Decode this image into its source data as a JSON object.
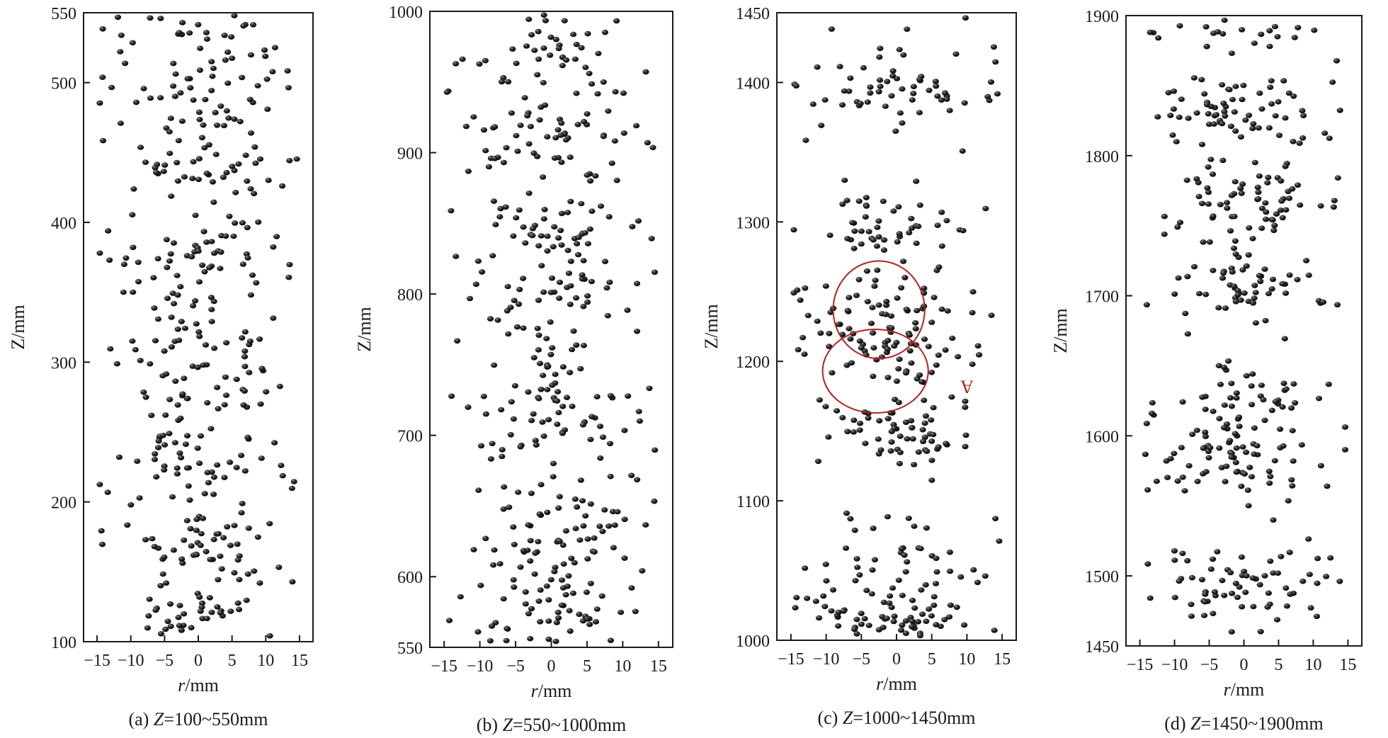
{
  "chart_data": [
    {
      "type": "scatter",
      "caption": "(a) Z=100~550mm",
      "caption_prefix": "(a) ",
      "caption_var": "Z",
      "caption_range": "=100~550mm",
      "xlabel_var": "r",
      "xlabel_unit": "/mm",
      "ylabel": "Z/mm",
      "xlim": [
        -17,
        17
      ],
      "ylim": [
        100,
        550
      ],
      "xticks": [
        -15,
        -10,
        -5,
        0,
        5,
        10,
        15
      ],
      "xtick_labels": [
        "−15",
        "−10",
        "−5",
        "0",
        "5",
        "10",
        "15"
      ],
      "yticks": [
        100,
        200,
        300,
        400,
        500,
        550
      ],
      "ytick_labels": [
        "100",
        "200",
        "300",
        "400",
        "500",
        "550"
      ],
      "point_count": 420,
      "seed": 11,
      "clusters": [
        {
          "z": 115,
          "spread": 12,
          "weight": 0.9
        },
        {
          "z": 170,
          "spread": 16,
          "weight": 1.0
        },
        {
          "z": 230,
          "spread": 14,
          "weight": 1.3
        },
        {
          "z": 280,
          "spread": 16,
          "weight": 1.0
        },
        {
          "z": 325,
          "spread": 15,
          "weight": 1.0
        },
        {
          "z": 380,
          "spread": 16,
          "weight": 1.1
        },
        {
          "z": 440,
          "spread": 15,
          "weight": 1.3
        },
        {
          "z": 490,
          "spread": 14,
          "weight": 1.2
        },
        {
          "z": 535,
          "spread": 12,
          "weight": 0.9
        }
      ],
      "annotations": []
    },
    {
      "type": "scatter",
      "caption": "(b) Z=550~1000mm",
      "caption_prefix": "(b) ",
      "caption_var": "Z",
      "caption_range": "=550~1000mm",
      "xlabel_var": "r",
      "xlabel_unit": "/mm",
      "ylabel": "Z/mm",
      "xlim": [
        -17,
        17
      ],
      "ylim": [
        550,
        1000
      ],
      "xticks": [
        -15,
        -10,
        -5,
        0,
        5,
        10,
        15
      ],
      "xtick_labels": [
        "−15",
        "−10",
        "−5",
        "0",
        "5",
        "10",
        "15"
      ],
      "yticks": [
        550,
        600,
        700,
        800,
        900,
        1000
      ],
      "ytick_labels": [
        "550",
        "600",
        "700",
        "800",
        "900",
        "1000"
      ],
      "point_count": 420,
      "seed": 23,
      "clusters": [
        {
          "z": 575,
          "spread": 14,
          "weight": 1.0
        },
        {
          "z": 630,
          "spread": 16,
          "weight": 1.3
        },
        {
          "z": 700,
          "spread": 16,
          "weight": 1.0
        },
        {
          "z": 735,
          "spread": 14,
          "weight": 1.0
        },
        {
          "z": 795,
          "spread": 14,
          "weight": 0.9
        },
        {
          "z": 840,
          "spread": 14,
          "weight": 1.2
        },
        {
          "z": 915,
          "spread": 16,
          "weight": 1.4
        },
        {
          "z": 965,
          "spread": 16,
          "weight": 1.0
        }
      ],
      "annotations": []
    },
    {
      "type": "scatter",
      "caption": "(c) Z=1000~1450mm",
      "caption_prefix": "(c) ",
      "caption_var": "Z",
      "caption_range": "=1000~1450mm",
      "xlabel_var": "r",
      "xlabel_unit": "/mm",
      "ylabel": "Z/mm",
      "xlim": [
        -17,
        17
      ],
      "ylim": [
        1000,
        1450
      ],
      "xticks": [
        -15,
        -10,
        -5,
        0,
        5,
        10,
        15
      ],
      "xtick_labels": [
        "−15",
        "−10",
        "−5",
        "0",
        "5",
        "10",
        "15"
      ],
      "yticks": [
        1000,
        1100,
        1200,
        1300,
        1400,
        1450
      ],
      "ytick_labels": [
        "1000",
        "1100",
        "1200",
        "1300",
        "1400",
        "1450"
      ],
      "point_count": 400,
      "seed": 37,
      "clusters": [
        {
          "z": 1020,
          "spread": 12,
          "weight": 1.3
        },
        {
          "z": 1055,
          "spread": 14,
          "weight": 0.8
        },
        {
          "z": 1150,
          "spread": 16,
          "weight": 1.4
        },
        {
          "z": 1200,
          "spread": 12,
          "weight": 0.9
        },
        {
          "z": 1240,
          "spread": 14,
          "weight": 1.2
        },
        {
          "z": 1295,
          "spread": 16,
          "weight": 0.9
        },
        {
          "z": 1395,
          "spread": 16,
          "weight": 1.4
        }
      ],
      "annotations": [
        {
          "type": "circle",
          "center_r": -2.5,
          "center_z": 1237,
          "radius_r": 6.5,
          "radius_z": 35,
          "color": "#b22222"
        },
        {
          "type": "circle",
          "center_r": -3.0,
          "center_z": 1193,
          "radius_r": 7.5,
          "radius_z": 30,
          "color": "#b22222"
        },
        {
          "type": "label",
          "text": "A",
          "r": 10,
          "z": 1177,
          "color": "#b22222"
        }
      ]
    },
    {
      "type": "scatter",
      "caption": "(d) Z=1450~1900mm",
      "caption_prefix": "(d) ",
      "caption_var": "Z",
      "caption_range": "=1450~1900mm",
      "xlabel_var": "r",
      "xlabel_unit": "/mm",
      "ylabel": "Z/mm",
      "xlim": [
        -17,
        17
      ],
      "ylim": [
        1450,
        1900
      ],
      "xticks": [
        -15,
        -10,
        -5,
        0,
        5,
        10,
        15
      ],
      "xtick_labels": [
        "−15",
        "−10",
        "−5",
        "0",
        "5",
        "10",
        "15"
      ],
      "yticks": [
        1450,
        1500,
        1600,
        1700,
        1800,
        1900
      ],
      "ytick_labels": [
        "1450",
        "1500",
        "1600",
        "1700",
        "1800",
        "1900"
      ],
      "point_count": 420,
      "seed": 51,
      "clusters": [
        {
          "z": 1495,
          "spread": 14,
          "weight": 1.3
        },
        {
          "z": 1585,
          "spread": 14,
          "weight": 1.6
        },
        {
          "z": 1625,
          "spread": 12,
          "weight": 0.8
        },
        {
          "z": 1705,
          "spread": 12,
          "weight": 1.0
        },
        {
          "z": 1765,
          "spread": 16,
          "weight": 1.4
        },
        {
          "z": 1830,
          "spread": 14,
          "weight": 1.2
        },
        {
          "z": 1885,
          "spread": 10,
          "weight": 0.4
        }
      ],
      "annotations": []
    }
  ]
}
